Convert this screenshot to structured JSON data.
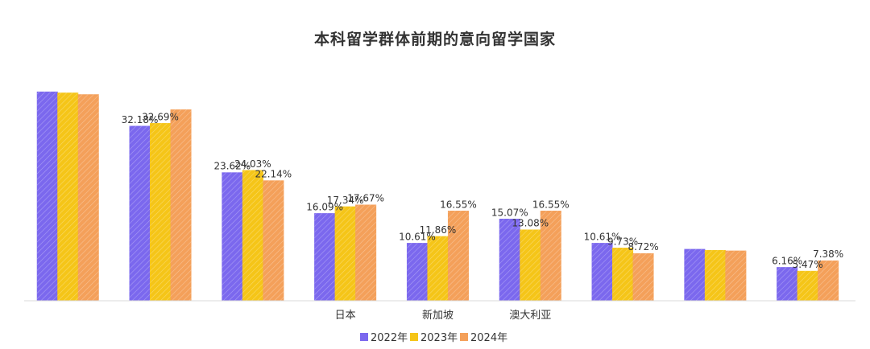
{
  "chart_data": {
    "type": "bar",
    "title": "本科留学群体前期的意向留学国家",
    "categories": [
      "",
      "",
      "",
      "日本",
      "新加坡",
      "澳大利亚",
      "",
      "",
      ""
    ],
    "series": [
      {
        "name": "2022年",
        "color": "#7b68ee",
        "values": [
          38.5,
          32.18,
          23.62,
          16.09,
          10.61,
          15.07,
          10.61,
          9.5,
          6.16
        ]
      },
      {
        "name": "2023年",
        "color": "#f5c518",
        "values": [
          38.3,
          32.69,
          24.03,
          17.34,
          11.86,
          13.08,
          9.73,
          9.3,
          5.47
        ]
      },
      {
        "name": "2024年",
        "color": "#f4a05a",
        "values": [
          38.0,
          35.2,
          22.14,
          17.67,
          16.55,
          16.55,
          8.72,
          9.2,
          7.38
        ]
      }
    ],
    "data_labels": [
      [
        "",
        "32.18%",
        "23.62%",
        "16.09%",
        "10.61%",
        "15.07%",
        "10.61%",
        "",
        "6.16%"
      ],
      [
        "",
        "32.69%",
        "24.03%",
        "17.34%",
        "11.86%",
        "13.08%",
        "9.73%",
        "",
        "5.47%"
      ],
      [
        "",
        "",
        "22.14%",
        "17.67%",
        "16.55%",
        "16.55%",
        "8.72%",
        "",
        "7.38%"
      ]
    ],
    "ylim": [
      0,
      40
    ],
    "grid": false,
    "legend_position": "bottom-center"
  }
}
